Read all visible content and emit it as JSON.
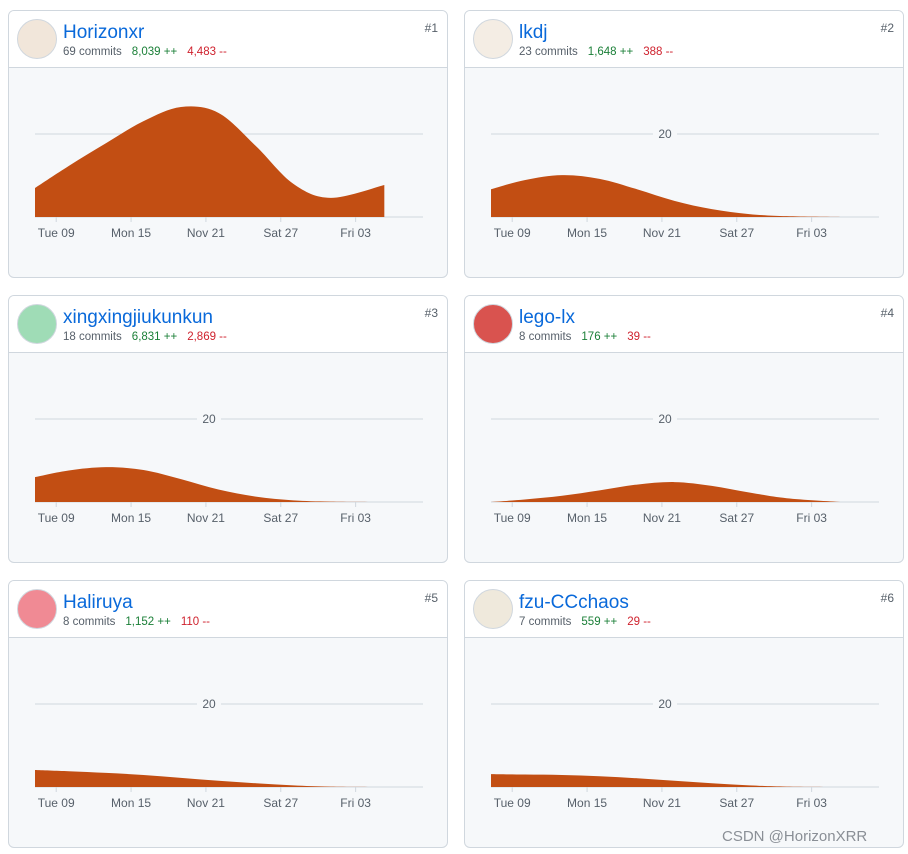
{
  "contributors": [
    {
      "rank": "#1",
      "name": "Horizonxr",
      "commits": "69 commits",
      "additions": "8,039 ++",
      "deletions": "4,483 --",
      "chart_data": {
        "type": "area",
        "x": [
          7.3,
          10,
          13,
          16,
          19,
          22,
          25,
          28,
          31,
          35.3
        ],
        "values": [
          7.0,
          12.3,
          17.8,
          23.1,
          26.5,
          25.1,
          17.1,
          8.0,
          4.6,
          7.7
        ],
        "color": "#c24e13",
        "xlim": [
          7.3,
          38.4
        ],
        "xticks": [
          {
            "value": 9,
            "label": "Tue 09"
          },
          {
            "value": 15,
            "label": "Mon 15"
          },
          {
            "value": 21,
            "label": "Nov 21"
          },
          {
            "value": 27,
            "label": "Sat 27"
          },
          {
            "value": 33,
            "label": "Fri 03"
          }
        ],
        "ylim": [
          0,
          30
        ],
        "yticks": [
          20
        ],
        "grid": true
      }
    },
    {
      "rank": "#2",
      "name": "lkdj",
      "commits": "23 commits",
      "additions": "1,648 ++",
      "deletions": "388 --",
      "chart_data": {
        "type": "area",
        "x": [
          7.3,
          10,
          13,
          16,
          19,
          22,
          25,
          28,
          31,
          35.3
        ],
        "values": [
          6.7,
          8.9,
          10.1,
          9.2,
          6.7,
          3.9,
          1.9,
          0.7,
          0.2,
          0
        ],
        "color": "#c24e13",
        "xlim": [
          7.3,
          38.4
        ],
        "xticks": [
          {
            "value": 9,
            "label": "Tue 09"
          },
          {
            "value": 15,
            "label": "Mon 15"
          },
          {
            "value": 21,
            "label": "Nov 21"
          },
          {
            "value": 27,
            "label": "Sat 27"
          },
          {
            "value": 33,
            "label": "Fri 03"
          }
        ],
        "ylim": [
          0,
          30
        ],
        "yticks": [
          20
        ],
        "grid": true
      }
    },
    {
      "rank": "#3",
      "name": "xingxingjiukunkun",
      "commits": "18 commits",
      "additions": "6,831 ++",
      "deletions": "2,869 --",
      "chart_data": {
        "type": "area",
        "x": [
          7.3,
          10,
          13,
          16,
          19,
          22,
          25,
          28,
          31,
          35.3
        ],
        "values": [
          6.0,
          7.6,
          8.4,
          7.7,
          5.5,
          3.0,
          1.3,
          0.4,
          0.1,
          0
        ],
        "color": "#c24e13",
        "xlim": [
          7.3,
          38.4
        ],
        "xticks": [
          {
            "value": 9,
            "label": "Tue 09"
          },
          {
            "value": 15,
            "label": "Mon 15"
          },
          {
            "value": 21,
            "label": "Nov 21"
          },
          {
            "value": 27,
            "label": "Sat 27"
          },
          {
            "value": 33,
            "label": "Fri 03"
          }
        ],
        "ylim": [
          0,
          30
        ],
        "yticks": [
          20
        ],
        "grid": true
      }
    },
    {
      "rank": "#4",
      "name": "lego-lx",
      "commits": "8 commits",
      "additions": "176 ++",
      "deletions": "39 --",
      "chart_data": {
        "type": "area",
        "x": [
          7.3,
          10,
          13,
          16,
          19,
          22,
          25,
          28,
          31,
          35.3
        ],
        "values": [
          0,
          0.6,
          1.5,
          2.8,
          4.2,
          4.8,
          3.9,
          2.3,
          0.9,
          0
        ],
        "color": "#c24e13",
        "xlim": [
          7.3,
          38.4
        ],
        "xticks": [
          {
            "value": 9,
            "label": "Tue 09"
          },
          {
            "value": 15,
            "label": "Mon 15"
          },
          {
            "value": 21,
            "label": "Nov 21"
          },
          {
            "value": 27,
            "label": "Sat 27"
          },
          {
            "value": 33,
            "label": "Fri 03"
          }
        ],
        "ylim": [
          0,
          30
        ],
        "yticks": [
          20
        ],
        "grid": true
      }
    },
    {
      "rank": "#5",
      "name": "Haliruya",
      "commits": "8 commits",
      "additions": "1,152 ++",
      "deletions": "110 --",
      "chart_data": {
        "type": "area",
        "x": [
          7.3,
          10,
          13,
          16,
          19,
          22,
          25,
          28,
          31,
          35.3
        ],
        "values": [
          4.1,
          3.8,
          3.4,
          2.9,
          2.2,
          1.5,
          0.9,
          0.4,
          0.1,
          0
        ],
        "color": "#c24e13",
        "xlim": [
          7.3,
          38.4
        ],
        "xticks": [
          {
            "value": 9,
            "label": "Tue 09"
          },
          {
            "value": 15,
            "label": "Mon 15"
          },
          {
            "value": 21,
            "label": "Nov 21"
          },
          {
            "value": 27,
            "label": "Sat 27"
          },
          {
            "value": 33,
            "label": "Fri 03"
          }
        ],
        "ylim": [
          0,
          30
        ],
        "yticks": [
          20
        ],
        "grid": true
      }
    },
    {
      "rank": "#6",
      "name": "fzu-CCchaos",
      "commits": "7 commits",
      "additions": "559 ++",
      "deletions": "29 --",
      "chart_data": {
        "type": "area",
        "x": [
          7.3,
          10,
          13,
          16,
          19,
          22,
          25,
          28,
          31,
          35.3
        ],
        "values": [
          3.1,
          3.0,
          2.9,
          2.6,
          2.1,
          1.5,
          0.9,
          0.4,
          0.1,
          0
        ],
        "color": "#c24e13",
        "xlim": [
          7.3,
          38.4
        ],
        "xticks": [
          {
            "value": 9,
            "label": "Tue 09"
          },
          {
            "value": 15,
            "label": "Mon 15"
          },
          {
            "value": 21,
            "label": "Nov 21"
          },
          {
            "value": 27,
            "label": "Sat 27"
          },
          {
            "value": 33,
            "label": "Fri 03"
          }
        ],
        "ylim": [
          0,
          30
        ],
        "yticks": [
          20
        ],
        "grid": true
      }
    }
  ],
  "watermark": "CSDN @HorizonXRR"
}
